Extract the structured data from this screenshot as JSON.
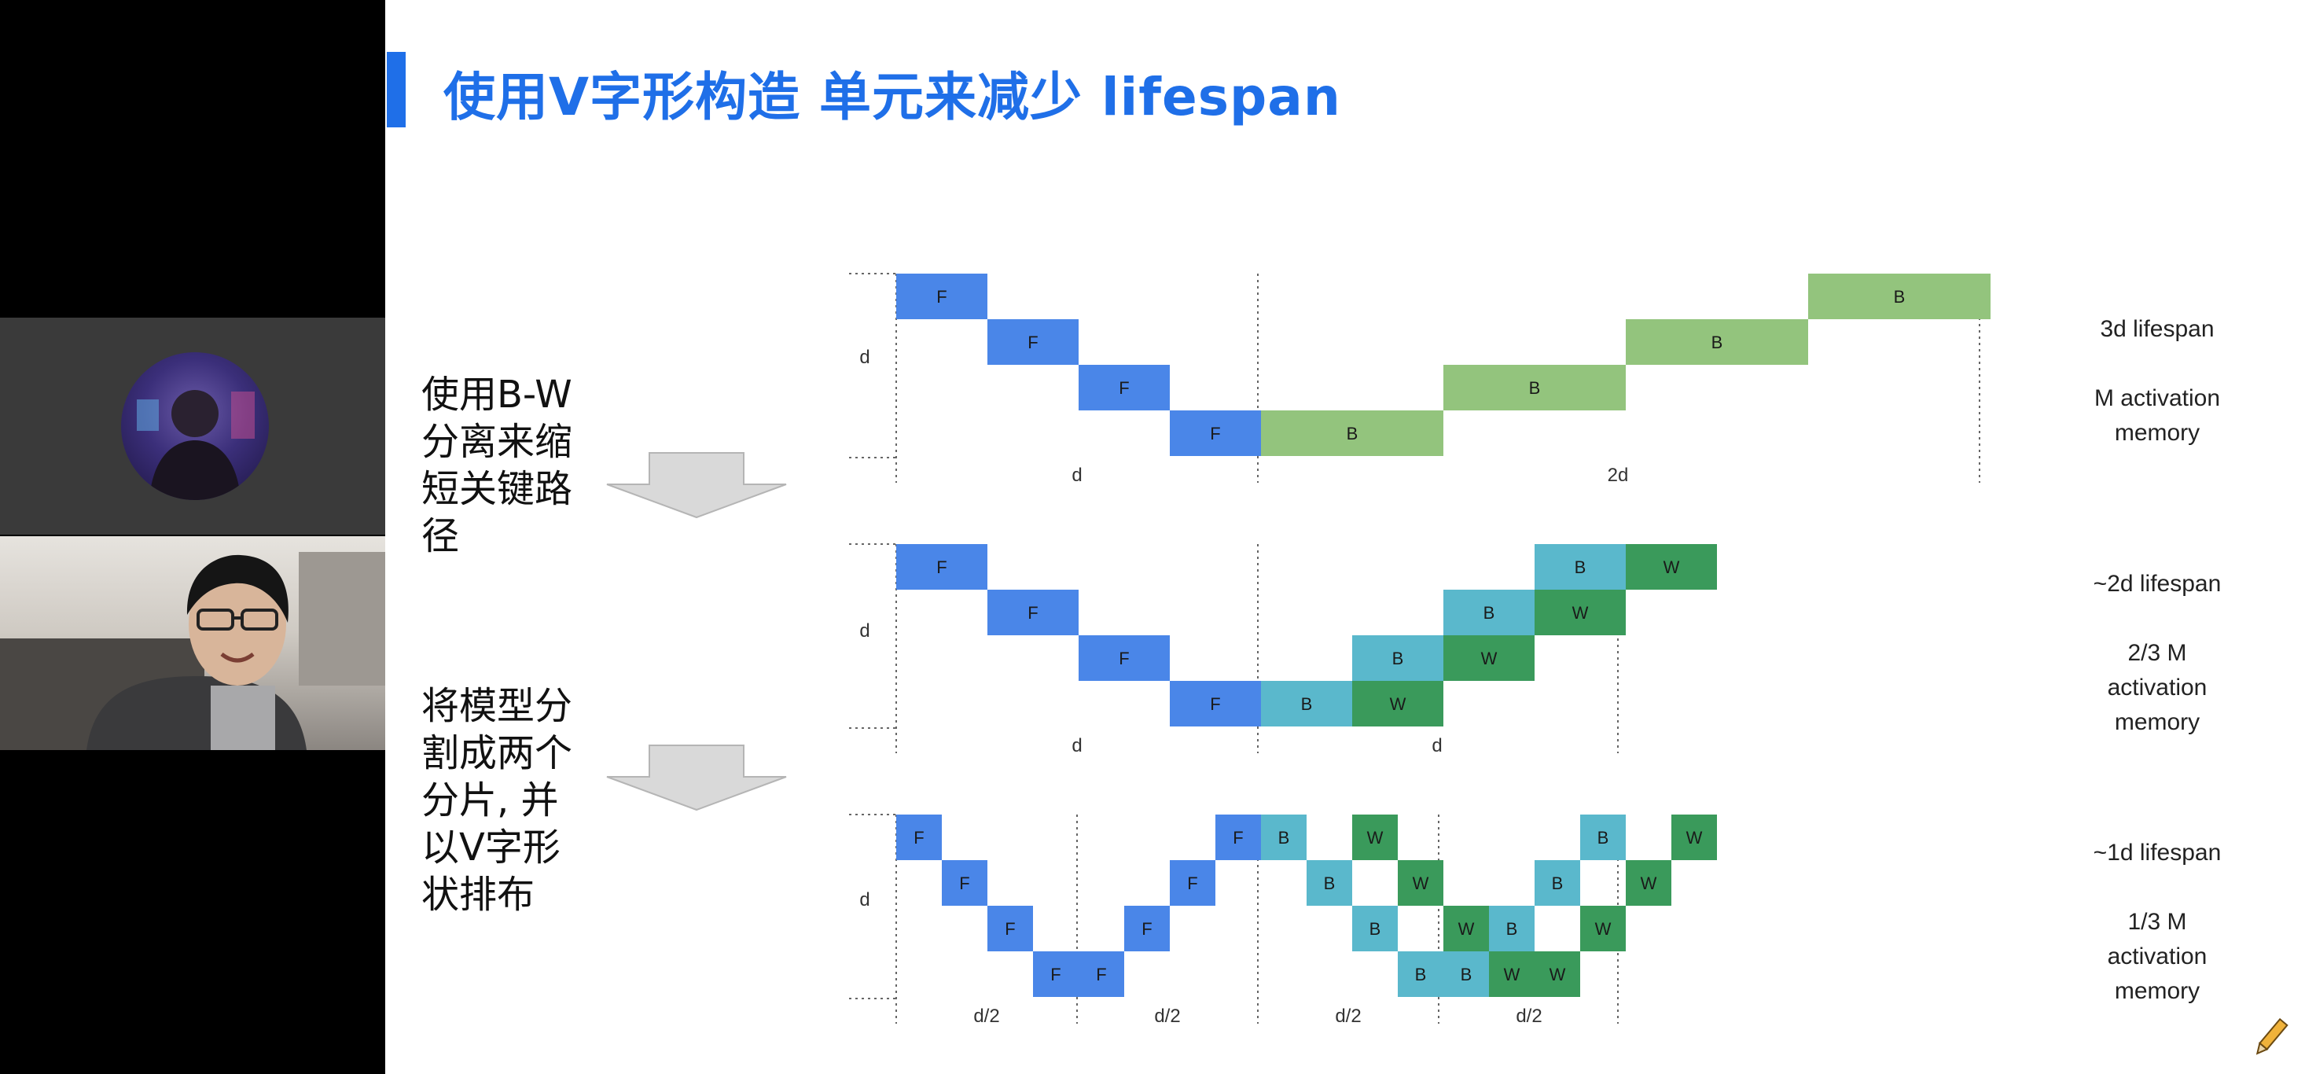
{
  "title": "使用V字形构造 单元来减少 lifespan",
  "steps": {
    "step1_lines": [
      "使用B-W",
      "分离来缩",
      "短关键路",
      "径"
    ],
    "step2_lines": [
      "将模型分",
      "割成两个",
      "分片, 并",
      "以V字形",
      "状排布"
    ]
  },
  "block_labels": {
    "forward": "F",
    "backward": "B",
    "weight": "W"
  },
  "rows": [
    {
      "y_label": "d",
      "x_labels": [
        "d",
        "2d"
      ],
      "notes": [
        "3d lifespan",
        "M activation",
        "memory"
      ]
    },
    {
      "y_label": "d",
      "x_labels": [
        "d",
        "d"
      ],
      "notes": [
        "~2d lifespan",
        "2/3 M",
        "activation",
        "memory"
      ]
    },
    {
      "y_label": "d",
      "x_labels": [
        "d/2",
        "d/2",
        "d/2",
        "d/2"
      ],
      "notes": [
        "~1d lifespan",
        "1/3 M",
        "activation",
        "memory"
      ]
    }
  ],
  "colors": {
    "title": "#1f6fe8",
    "forward": "#4a86e8",
    "backward_row1": "#93c47d",
    "backward": "#5ab8cc",
    "weight": "#3a9a5b"
  },
  "icons": [
    "pencil-icon",
    "down-arrow-icon"
  ]
}
